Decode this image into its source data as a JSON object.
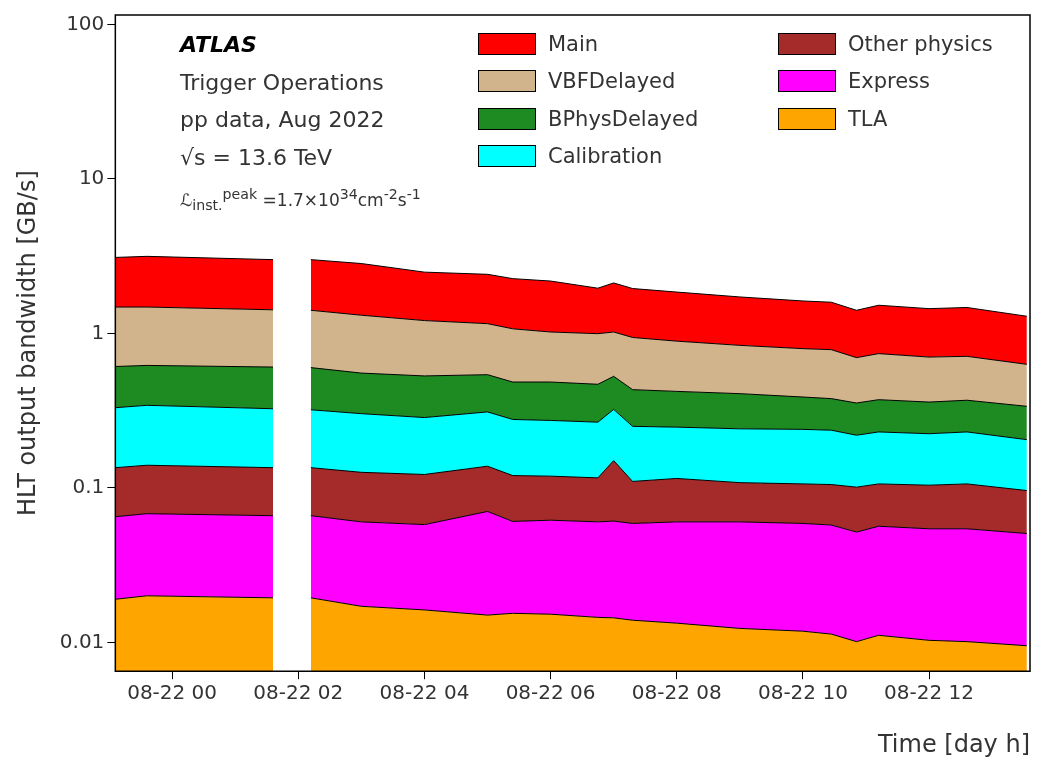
{
  "chart_data": {
    "type": "area",
    "stacked": true,
    "log": "y",
    "grid": false,
    "legend": "top right",
    "marker": "none",
    "xlabel": "Time [day h]",
    "ylabel": "HLT output bandwidth [GB/s]",
    "annotations": [
      "ATLAS",
      "Trigger Operations",
      "pp data, Aug 2022",
      "√s = 13.6 TeV",
      "ℒ$_{inst.}$$^{peak}$ =1.7×10$^{34}$cm$^{-2}$s$^{-1}$"
    ],
    "x": [
      "2022-08-21T23:06",
      "2022-08-21T23:36",
      "2022-08-22T01:36",
      "2022-08-22T01:54",
      "2022-08-22T02:12",
      "2022-08-22T03:00",
      "2022-08-22T04:00",
      "2022-08-22T05:00",
      "2022-08-22T05:24",
      "2022-08-22T06:00",
      "2022-08-22T06:45",
      "2022-08-22T07:00",
      "2022-08-22T07:18",
      "2022-08-22T08:00",
      "2022-08-22T09:00",
      "2022-08-22T10:00",
      "2022-08-22T10:27",
      "2022-08-22T10:51",
      "2022-08-22T11:12",
      "2022-08-22T12:00",
      "2022-08-22T12:36",
      "2022-08-22T13:33"
    ],
    "xlim": [
      "2022-08-21T23:06",
      "2022-08-22T13:36"
    ],
    "xticks": [
      {
        "value": "2022-08-22T00:00",
        "label": "08-22 00"
      },
      {
        "value": "2022-08-22T02:00",
        "label": "08-22 02"
      },
      {
        "value": "2022-08-22T04:00",
        "label": "08-22 04"
      },
      {
        "value": "2022-08-22T06:00",
        "label": "08-22 06"
      },
      {
        "value": "2022-08-22T08:00",
        "label": "08-22 08"
      },
      {
        "value": "2022-08-22T10:00",
        "label": "08-22 10"
      },
      {
        "value": "2022-08-22T12:00",
        "label": "08-22 12"
      }
    ],
    "ylim": [
      0.0065,
      115
    ],
    "yticks": [
      0.01,
      0.1,
      1,
      10,
      100
    ],
    "series": [
      {
        "name": "TLA",
        "color": "#ffa500",
        "values": [
          0.019,
          0.02,
          0.0194,
          null,
          0.0194,
          0.0171,
          0.0162,
          0.015,
          0.0154,
          0.0152,
          0.0145,
          0.0144,
          0.0139,
          0.0133,
          0.0123,
          0.0118,
          0.0113,
          0.0101,
          0.0111,
          0.0103,
          0.0101,
          0.0095
        ]
      },
      {
        "name": "Express",
        "color": "#ff00ff",
        "values": [
          0.046,
          0.048,
          0.0466,
          null,
          0.0466,
          0.0431,
          0.0416,
          0.0553,
          0.0452,
          0.0465,
          0.0457,
          0.0465,
          0.0449,
          0.0469,
          0.0479,
          0.047,
          0.0461,
          0.0416,
          0.0453,
          0.044,
          0.0442,
          0.0411
        ]
      },
      {
        "name": "Other physics",
        "color": "#a52a2a",
        "values": [
          0.07,
          0.072,
          0.069,
          null,
          0.069,
          0.0658,
          0.0642,
          0.0677,
          0.0594,
          0.0573,
          0.0558,
          0.0891,
          0.0512,
          0.0548,
          0.0478,
          0.0472,
          0.0476,
          0.0493,
          0.0496,
          0.0497,
          0.0517,
          0.0454
        ]
      },
      {
        "name": "Calibration",
        "color": "#00ffff",
        "values": [
          0.195,
          0.202,
          0.19,
          null,
          0.185,
          0.176,
          0.163,
          0.172,
          0.157,
          0.154,
          0.15,
          0.172,
          0.14,
          0.132,
          0.133,
          0.133,
          0.131,
          0.118,
          0.124,
          0.12,
          0.124,
          0.109
        ]
      },
      {
        "name": "BPhysDelayed",
        "color": "#1e8a22",
        "values": [
          0.28,
          0.278,
          0.28,
          null,
          0.28,
          0.251,
          0.245,
          0.23,
          0.207,
          0.211,
          0.202,
          0.205,
          0.182,
          0.174,
          0.166,
          0.148,
          0.142,
          0.135,
          0.142,
          0.135,
          0.139,
          0.132
        ]
      },
      {
        "name": "VBFDelayed",
        "color": "#d2b48c",
        "values": [
          0.87,
          0.86,
          0.815,
          null,
          0.81,
          0.757,
          0.68,
          0.615,
          0.586,
          0.536,
          0.527,
          0.493,
          0.508,
          0.469,
          0.429,
          0.409,
          0.406,
          0.342,
          0.367,
          0.343,
          0.341,
          0.293
        ]
      },
      {
        "name": "Main",
        "color": "#ff0000",
        "values": [
          1.62,
          1.67,
          1.58,
          null,
          1.59,
          1.52,
          1.28,
          1.255,
          1.19,
          1.16,
          0.965,
          1.1,
          1.01,
          0.96,
          0.884,
          0.824,
          0.806,
          0.714,
          0.781,
          0.743,
          0.76,
          0.66
        ]
      }
    ]
  }
}
